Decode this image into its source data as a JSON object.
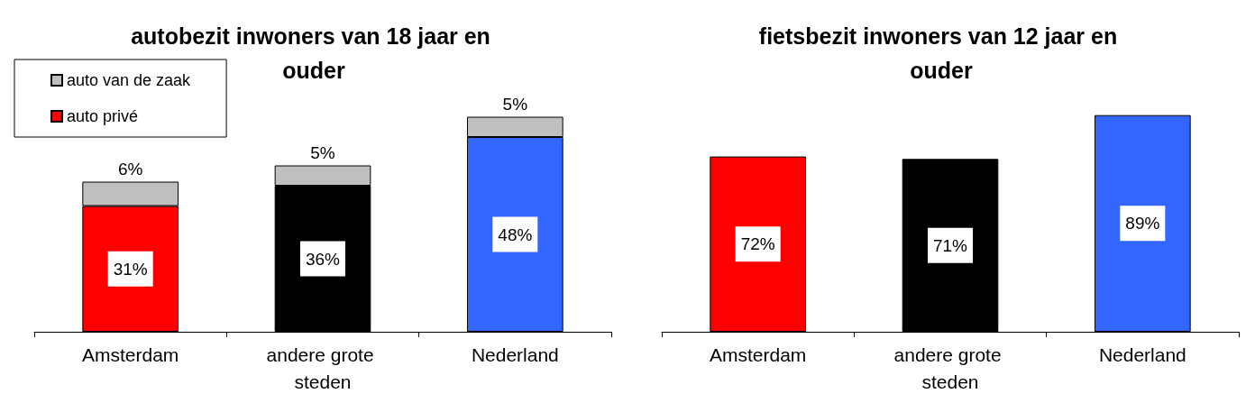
{
  "chart_data": [
    {
      "type": "bar",
      "title": "autobezit inwoners van 18 jaar en ouder",
      "categories": [
        "Amsterdam",
        "andere grote steden",
        "Nederland"
      ],
      "stacked": true,
      "legend": "top left",
      "series": [
        {
          "name": "auto privé",
          "color": "#ff0000",
          "colors": [
            "#ff0000",
            "#000000",
            "#3366ff"
          ],
          "values": [
            31,
            36,
            48
          ],
          "value_labels": [
            "31%",
            "36%",
            "48%"
          ]
        },
        {
          "name": "auto van de zaak",
          "color": "#c0c0c0",
          "values": [
            6,
            5,
            5
          ],
          "value_labels": [
            "6%",
            "5%",
            "5%"
          ]
        }
      ]
    },
    {
      "type": "bar",
      "title": "fietsbezit inwoners van 12 jaar en ouder",
      "categories": [
        "Amsterdam",
        "andere grote steden",
        "Nederland"
      ],
      "colors": [
        "#ff0000",
        "#000000",
        "#3366ff"
      ],
      "values": [
        72,
        71,
        89
      ],
      "value_labels": [
        "72%",
        "71%",
        "89%"
      ]
    }
  ]
}
